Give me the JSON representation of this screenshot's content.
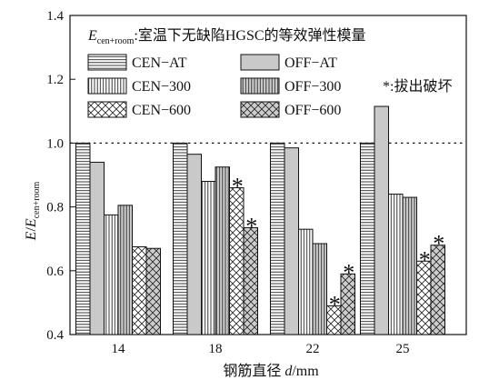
{
  "chart_data": {
    "type": "bar",
    "xlabel": "钢筋直径 d/mm",
    "ylabel": "E/E_cen+room",
    "ylim": [
      0.4,
      1.4
    ],
    "yticks": [
      0.4,
      0.6,
      0.8,
      1.0,
      1.2,
      1.4
    ],
    "ytick_labels": [
      "0.4",
      "0.6",
      "0.8",
      "1.0",
      "1.2",
      "1.4"
    ],
    "reference_line": 1.0,
    "categories": [
      "14",
      "18",
      "22",
      "25"
    ],
    "series": [
      {
        "name": "CEN−AT",
        "values": [
          1.0,
          1.0,
          1.0,
          1.0
        ],
        "pattern": "hlines"
      },
      {
        "name": "OFF−AT",
        "values": [
          0.94,
          0.965,
          0.985,
          1.115
        ],
        "pattern": "gray"
      },
      {
        "name": "CEN−300",
        "values": [
          0.775,
          0.88,
          0.73,
          0.84
        ],
        "pattern": "vlines"
      },
      {
        "name": "OFF−300",
        "values": [
          0.805,
          0.925,
          0.685,
          0.83
        ],
        "pattern": "vlines-dense"
      },
      {
        "name": "CEN−600",
        "values": [
          0.675,
          0.86,
          0.49,
          0.63
        ],
        "pattern": "cross"
      },
      {
        "name": "OFF−600",
        "values": [
          0.67,
          0.735,
          0.59,
          0.68
        ],
        "pattern": "cross-dense"
      }
    ],
    "pullout_marks": [
      [
        1,
        4
      ],
      [
        1,
        5
      ],
      [
        2,
        4
      ],
      [
        2,
        5
      ],
      [
        3,
        4
      ],
      [
        3,
        5
      ]
    ],
    "legend": {
      "title_symbol": "E",
      "title_subscript": "cen+room",
      "title_text": ":室温下无缺陷HGSC的等效弹性模量",
      "note": "*:拔出破坏",
      "placement": "top"
    }
  }
}
